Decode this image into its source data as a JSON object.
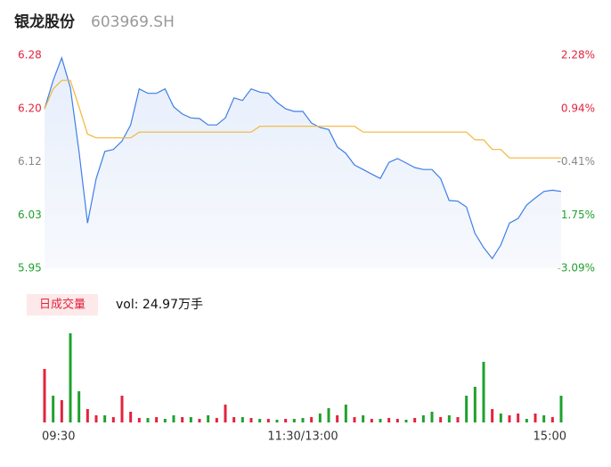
{
  "header": {
    "name": "银龙股份",
    "code": "603969.SH"
  },
  "chart_data": [
    {
      "type": "line",
      "categories": [
        "09:30",
        null,
        null,
        null,
        null,
        null,
        null,
        null,
        null,
        null,
        null,
        null,
        null,
        null,
        null,
        null,
        null,
        null,
        null,
        null,
        null,
        null,
        null,
        null,
        null,
        null,
        null,
        null,
        null,
        null,
        "11:30/13:00",
        null,
        null,
        null,
        null,
        null,
        null,
        null,
        null,
        null,
        null,
        null,
        null,
        null,
        null,
        null,
        null,
        null,
        null,
        null,
        null,
        null,
        null,
        null,
        null,
        null,
        null,
        null,
        null,
        null,
        "15:00"
      ],
      "series": [
        {
          "name": "price",
          "color": "#3f7ee8",
          "values": [
            6.197,
            6.241,
            6.276,
            6.23,
            6.131,
            6.02,
            6.089,
            6.131,
            6.134,
            6.147,
            6.172,
            6.228,
            6.221,
            6.221,
            6.228,
            6.2,
            6.189,
            6.183,
            6.182,
            6.172,
            6.172,
            6.183,
            6.214,
            6.21,
            6.228,
            6.223,
            6.221,
            6.207,
            6.197,
            6.193,
            6.193,
            6.175,
            6.168,
            6.165,
            6.138,
            6.128,
            6.11,
            6.103,
            6.096,
            6.089,
            6.114,
            6.12,
            6.113,
            6.106,
            6.103,
            6.103,
            6.089,
            6.055,
            6.054,
            6.045,
            6.004,
            5.982,
            5.965,
            5.986,
            6.02,
            6.027,
            6.048,
            6.059,
            6.069,
            6.071,
            6.069
          ]
        },
        {
          "name": "average",
          "color": "#f2b53a",
          "values": [
            6.197,
            6.228,
            6.241,
            6.241,
            6.2,
            6.158,
            6.152,
            6.152,
            6.152,
            6.152,
            6.152,
            6.161,
            6.161,
            6.161,
            6.161,
            6.161,
            6.161,
            6.161,
            6.161,
            6.161,
            6.161,
            6.161,
            6.161,
            6.161,
            6.161,
            6.17,
            6.17,
            6.17,
            6.17,
            6.17,
            6.17,
            6.17,
            6.17,
            6.17,
            6.17,
            6.17,
            6.17,
            6.161,
            6.161,
            6.161,
            6.161,
            6.161,
            6.161,
            6.161,
            6.161,
            6.161,
            6.161,
            6.161,
            6.161,
            6.161,
            6.149,
            6.149,
            6.134,
            6.134,
            6.121,
            6.121,
            6.121,
            6.121,
            6.121,
            6.121,
            6.121
          ]
        }
      ],
      "ylim": [
        5.95,
        6.28
      ],
      "yticks": [
        6.28,
        {
          "value": 6.1975,
          "label": "6.20"
        },
        {
          "value": 6.115,
          "label": "6.12"
        },
        {
          "value": 6.0325,
          "label": "6.03"
        },
        5.95
      ],
      "ytick_colors": [
        "#e2233e",
        "#e2233e",
        "#888888",
        "#1fa12d",
        "#1fa12d"
      ],
      "y2lim": [
        -3.09,
        2.28
      ],
      "y2ticks": [
        {
          "value": 2.28,
          "label": "2.28%"
        },
        {
          "value": 0.9375,
          "label": "0.94%"
        },
        {
          "value": -0.405,
          "label": "-0.41%"
        },
        {
          "value": -1.7475,
          "label": "-1.75%"
        },
        {
          "value": -3.09,
          "label": "-3.09%"
        }
      ]
    },
    {
      "type": "bar",
      "title": "日成交量",
      "subtitle": "vol: 24.97万手",
      "values": [
        60,
        30,
        25,
        100,
        35,
        15,
        8,
        8,
        6,
        30,
        12,
        5,
        5,
        6,
        4,
        8,
        6,
        6,
        4,
        8,
        5,
        20,
        6,
        6,
        5,
        4,
        4,
        3,
        4,
        4,
        5,
        6,
        10,
        16,
        8,
        20,
        6,
        8,
        4,
        4,
        5,
        4,
        3,
        5,
        8,
        12,
        6,
        8,
        6,
        30,
        40,
        68,
        15,
        10,
        8,
        10,
        4,
        10,
        8,
        6,
        30
      ],
      "colors": [
        "#e2233e",
        "#1fa12d",
        "#e2233e",
        "#1fa12d",
        "#1fa12d",
        "#e2233e",
        "#e2233e",
        "#1fa12d",
        "#e2233e",
        "#e2233e",
        "#e2233e",
        "#e2233e",
        "#1fa12d",
        "#e2233e",
        "#1fa12d",
        "#1fa12d",
        "#e2233e",
        "#1fa12d",
        "#e2233e",
        "#1fa12d",
        "#e2233e",
        "#e2233e",
        "#e2233e",
        "#1fa12d",
        "#e2233e",
        "#1fa12d",
        "#e2233e",
        "#1fa12d",
        "#e2233e",
        "#1fa12d",
        "#1fa12d",
        "#e2233e",
        "#1fa12d",
        "#1fa12d",
        "#e2233e",
        "#1fa12d",
        "#e2233e",
        "#1fa12d",
        "#e2233e",
        "#1fa12d",
        "#e2233e",
        "#e2233e",
        "#1fa12d",
        "#e2233e",
        "#1fa12d",
        "#1fa12d",
        "#e2233e",
        "#1fa12d",
        "#e2233e",
        "#1fa12d",
        "#1fa12d",
        "#1fa12d",
        "#e2233e",
        "#1fa12d",
        "#e2233e",
        "#e2233e",
        "#1fa12d",
        "#e2233e",
        "#1fa12d",
        "#e2233e",
        "#1fa12d"
      ],
      "ylim": [
        0,
        104
      ]
    }
  ]
}
